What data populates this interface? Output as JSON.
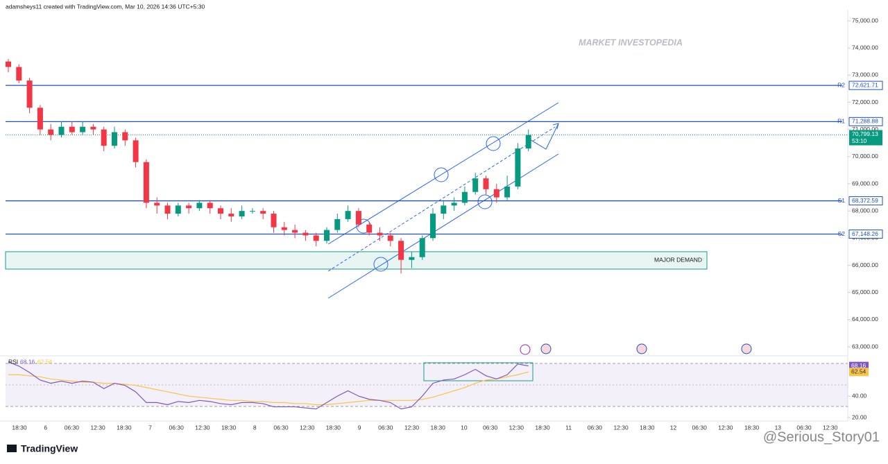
{
  "header": "adamsheys11 created with TradingView.com, Mar 10, 2026 14:36 UTC+5:30",
  "watermark": "MARKET INVESTOPEDIA",
  "footer_logo": "TradingView",
  "footer_credit": "@Serious_Story01",
  "chart_data": {
    "type": "candlestick",
    "up_color": "#089981",
    "down_color": "#f23645",
    "open": [
      73500,
      73300,
      72800,
      71800,
      71000,
      70800,
      71100,
      70900,
      71100,
      71000,
      70400,
      70900,
      70600,
      69800,
      68300,
      68200,
      67900,
      68200,
      68100,
      68300,
      68100,
      67900,
      67800,
      68000,
      68000,
      67900,
      67400,
      67300,
      67200,
      67100,
      66900,
      67300,
      67700,
      68000,
      67500,
      67200,
      67100,
      66900,
      66200,
      66300,
      67000,
      67900,
      68200,
      68300,
      68700,
      69200,
      68800,
      68500,
      68900,
      70300
    ],
    "high": [
      73600,
      73400,
      72900,
      71900,
      71200,
      71300,
      71300,
      71300,
      71200,
      71100,
      71100,
      71000,
      70700,
      69900,
      68500,
      68300,
      68300,
      68300,
      68400,
      68400,
      68200,
      68100,
      68200,
      68100,
      68100,
      68000,
      67600,
      67500,
      67300,
      67200,
      67400,
      67900,
      68200,
      68100,
      67600,
      67400,
      67200,
      67000,
      66500,
      67100,
      68100,
      68400,
      68500,
      68900,
      69400,
      69300,
      69000,
      69300,
      70500,
      71000
    ],
    "low": [
      73100,
      72700,
      71600,
      70800,
      70600,
      70700,
      70800,
      70800,
      70800,
      70200,
      70300,
      70400,
      69600,
      68100,
      67900,
      67700,
      67800,
      67900,
      68000,
      67900,
      67700,
      67600,
      67700,
      67900,
      67700,
      67200,
      67100,
      67000,
      66900,
      66700,
      66800,
      67200,
      67600,
      67400,
      67100,
      66900,
      66700,
      65700,
      65900,
      66200,
      66900,
      67700,
      68000,
      68200,
      68600,
      68600,
      68300,
      68400,
      68800,
      70200
    ],
    "close": [
      73300,
      72800,
      71800,
      71000,
      70800,
      71100,
      70900,
      71100,
      71000,
      70400,
      70900,
      70600,
      69800,
      68300,
      68200,
      67900,
      68200,
      68100,
      68300,
      68100,
      67900,
      67800,
      68000,
      68000,
      67900,
      67400,
      67300,
      67200,
      67100,
      66900,
      67300,
      67700,
      68000,
      67500,
      67200,
      67100,
      66900,
      66200,
      66300,
      67000,
      67900,
      68200,
      68300,
      68700,
      69200,
      68800,
      68500,
      68900,
      70300,
      70799.13
    ],
    "ylim": [
      63000,
      75000
    ],
    "yticks": [
      {
        "value": 63000,
        "label": "63,000.00"
      },
      {
        "value": 64000,
        "label": "64,000.00"
      },
      {
        "value": 65000,
        "label": "65,000.00"
      },
      {
        "value": 66000,
        "label": "66,000.00"
      },
      {
        "value": 67000,
        "label": "67,000.00"
      },
      {
        "value": 68000,
        "label": "68,000.00"
      },
      {
        "value": 69000,
        "label": "69,000.00"
      },
      {
        "value": 70000,
        "label": "70,000.00"
      },
      {
        "value": 71000,
        "label": "71,000.00"
      },
      {
        "value": 72000,
        "label": "72,000.00"
      },
      {
        "value": 73000,
        "label": "73,000.00"
      },
      {
        "value": 74000,
        "label": "74,000.00"
      },
      {
        "value": 75000,
        "label": "75,000.00"
      }
    ],
    "levels": [
      {
        "name": "R2",
        "value": 72621.71,
        "label": "72,621.71"
      },
      {
        "name": "R1",
        "value": 71288.88,
        "label": "71,288.88"
      },
      {
        "name": "S1",
        "value": 68372.59,
        "label": "68,372.59"
      },
      {
        "name": "S2",
        "value": 67148.26,
        "label": "67,148.26"
      }
    ],
    "level_color": "#1e4fc9",
    "last_price": {
      "value": 70799.13,
      "label": "70,799.13",
      "countdown": "53:10"
    },
    "zone": {
      "label": "MAJOR DEMAND",
      "low": 65860,
      "high": 66500,
      "color": "#1a9a8a"
    },
    "time_labels": [
      "18:30",
      "6",
      "06:30",
      "12:30",
      "18:30",
      "7",
      "06:30",
      "12:30",
      "18:30",
      "8",
      "06:30",
      "12:30",
      "18:30",
      "9",
      "06:30",
      "12:30",
      "18:30",
      "10",
      "06:30",
      "12:30",
      "18:30",
      "11",
      "06:30",
      "12:30",
      "18:30",
      "12",
      "06:30",
      "12:30",
      "18:30",
      "13",
      "06:30",
      "12:30"
    ],
    "rsi": {
      "name": "RSI",
      "color": "#7e57c2",
      "last_label": "68.16",
      "values": [
        72,
        68,
        62,
        55,
        52,
        54,
        52,
        54,
        53,
        47,
        52,
        50,
        44,
        34,
        34,
        32,
        35,
        34,
        36,
        35,
        33,
        32,
        34,
        34,
        33,
        30,
        30,
        30,
        29,
        28,
        34,
        40,
        45,
        40,
        37,
        36,
        34,
        28,
        30,
        40,
        52,
        55,
        56,
        60,
        65,
        59,
        56,
        60,
        70,
        68.16
      ]
    },
    "rsi_ma": {
      "color": "#f7c548",
      "last_label": "62.54",
      "values": [
        60,
        60,
        59,
        58,
        56,
        55,
        54,
        53,
        53,
        52,
        52,
        51,
        50,
        48,
        46,
        44,
        42,
        40,
        39,
        38,
        37,
        36,
        36,
        35,
        35,
        34,
        34,
        33,
        33,
        32,
        32,
        33,
        34,
        35,
        36,
        36,
        36,
        36,
        36,
        37,
        39,
        42,
        45,
        48,
        52,
        55,
        56,
        58,
        60,
        62.54
      ]
    },
    "rsi_ylim": [
      20,
      77
    ],
    "rsi_yticks": [
      {
        "value": 40,
        "label": "40.00"
      },
      {
        "value": 20,
        "label": "20.00"
      }
    ]
  }
}
